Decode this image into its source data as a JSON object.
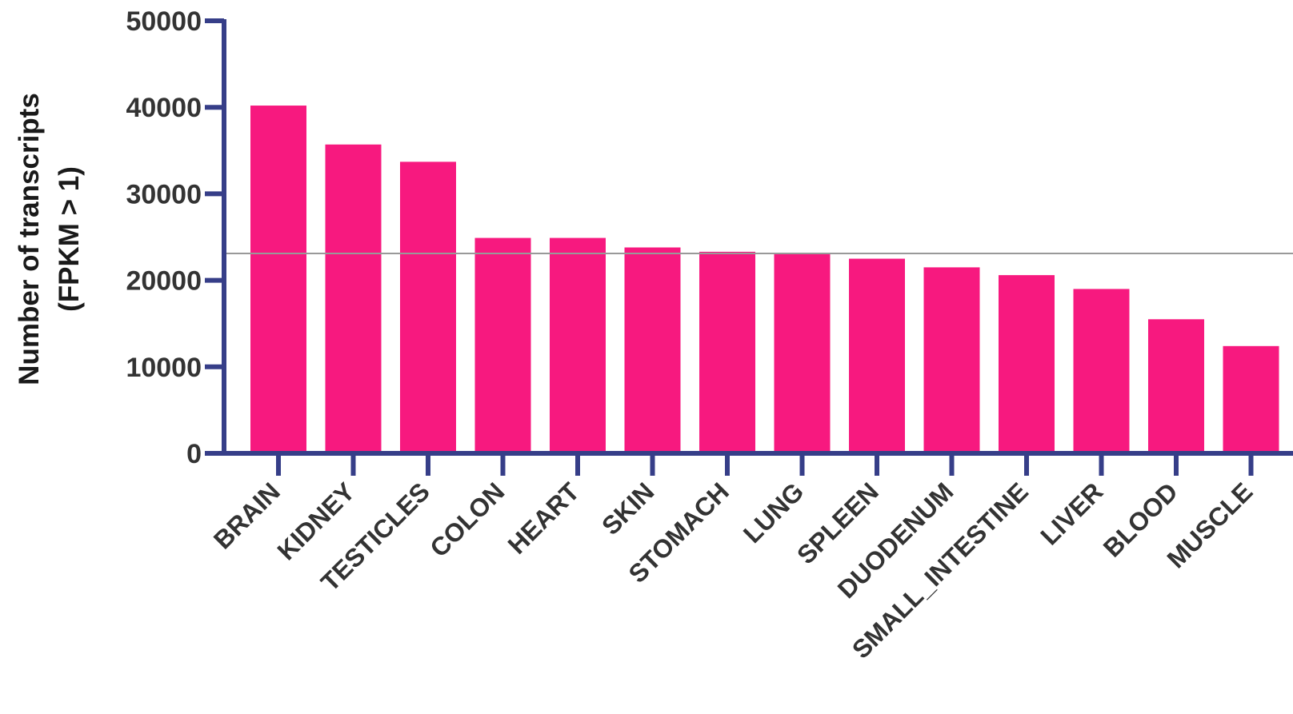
{
  "chart_data": {
    "type": "bar",
    "title": "",
    "xlabel": "",
    "ylabel": [
      "Number of transcripts",
      "(FPKM > 1)"
    ],
    "categories": [
      "BRAIN",
      "KIDNEY",
      "TESTICLES",
      "COLON",
      "HEART",
      "SKIN",
      "STOMACH",
      "LUNG",
      "SPLEEN",
      "DUODENUM",
      "SMALL_INTESTINE",
      "LIVER",
      "BLOOD",
      "MUSCLE"
    ],
    "values": [
      40200,
      35700,
      33700,
      24900,
      24900,
      23800,
      23300,
      23100,
      22500,
      21500,
      20600,
      19000,
      15500,
      12400
    ],
    "ylim": [
      0,
      50000
    ],
    "yticks": [
      0,
      10000,
      20000,
      30000,
      40000,
      50000
    ],
    "reference_line": 23100,
    "grid": false,
    "legend": "none",
    "colors": {
      "bar": "#F7197F",
      "axis": "#363E88",
      "reference_line": "#999999",
      "text": "#333333"
    }
  }
}
